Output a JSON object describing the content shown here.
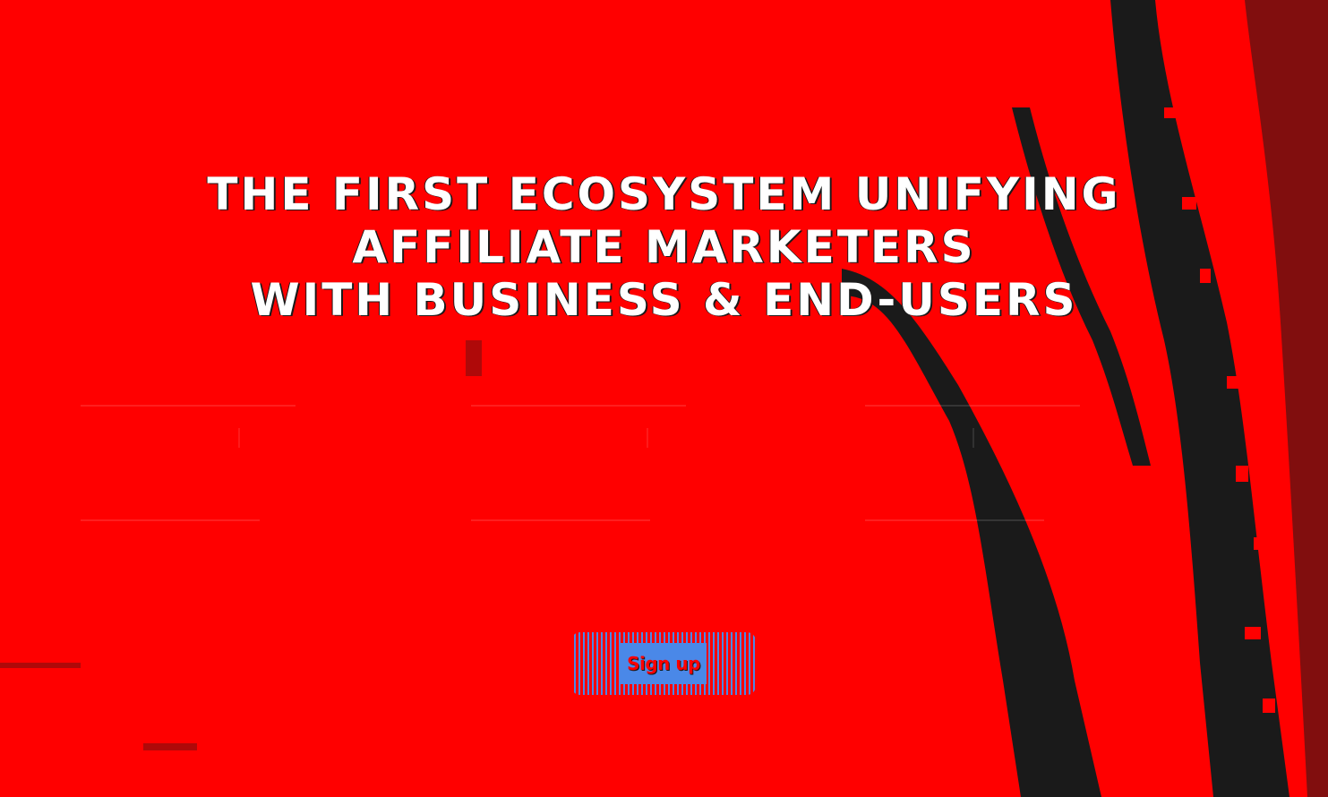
{
  "hero": {
    "headline": [
      "THE FIRST ECOSYSTEM UNIFYING",
      "AFFILIATE MARKETERS",
      "WITH BUSINESS & END-USERS"
    ],
    "signup_label": "Sign up"
  },
  "colors": {
    "background": "#ff0000",
    "texture": "#1a1a1a",
    "headline_text": "#ffffff",
    "button": "#4a88e8"
  }
}
